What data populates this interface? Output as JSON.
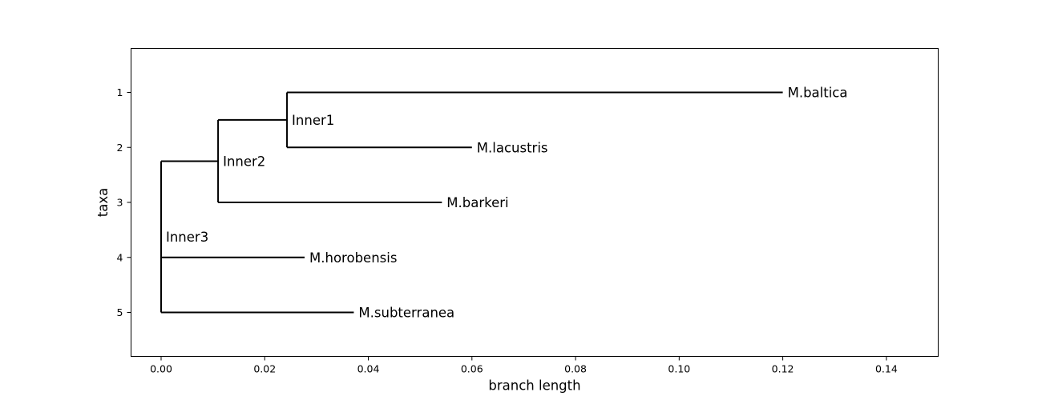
{
  "chart_data": {
    "type": "tree",
    "xlabel": "branch length",
    "ylabel": "taxa",
    "xlim": [
      -0.0058,
      0.15
    ],
    "ylim": [
      5.8,
      0.2
    ],
    "xticks": [
      0.0,
      0.02,
      0.04,
      0.06,
      0.08,
      0.1,
      0.12,
      0.14
    ],
    "xtick_labels": [
      "0.00",
      "0.02",
      "0.04",
      "0.06",
      "0.08",
      "0.10",
      "0.12",
      "0.14"
    ],
    "yticks": [
      1,
      2,
      3,
      4,
      5
    ],
    "ytick_labels": [
      "1",
      "2",
      "3",
      "4",
      "5"
    ],
    "grid": false,
    "leaves": [
      {
        "name": "M.baltica",
        "x": 0.12,
        "y": 1,
        "parent": "Inner1"
      },
      {
        "name": "M.lacustris",
        "x": 0.06,
        "y": 2,
        "parent": "Inner1"
      },
      {
        "name": "M.barkeri",
        "x": 0.0542,
        "y": 3,
        "parent": "Inner2"
      },
      {
        "name": "M.horobensis",
        "x": 0.0277,
        "y": 4,
        "parent": "Inner3"
      },
      {
        "name": "M.subterranea",
        "x": 0.0372,
        "y": 5,
        "parent": "Inner3"
      }
    ],
    "internal_nodes": [
      {
        "name": "Inner1",
        "x": 0.0243,
        "y": 1.5,
        "parent": "Inner2",
        "children": [
          "M.baltica",
          "M.lacustris"
        ]
      },
      {
        "name": "Inner2",
        "x": 0.011,
        "y": 2.25,
        "parent": "Inner3",
        "children": [
          "Inner1",
          "M.barkeri"
        ]
      },
      {
        "name": "Inner3",
        "x": 0.0,
        "y": 3.625,
        "parent": null,
        "children": [
          "Inner2",
          "M.horobensis",
          "M.subterranea"
        ]
      }
    ]
  }
}
